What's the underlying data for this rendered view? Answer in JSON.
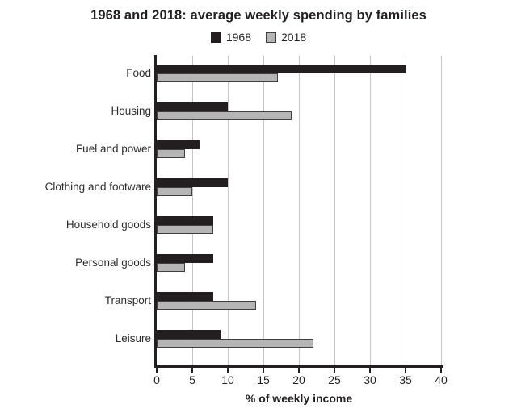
{
  "title": "1968 and 2018: average weekly spending by families",
  "legend": [
    {
      "label": "1968",
      "color": "#231f20",
      "border": "#231f20"
    },
    {
      "label": "2018",
      "color": "#b5b5b5",
      "border": "#3f3f3f"
    }
  ],
  "chart_data": {
    "type": "bar",
    "orientation": "horizontal",
    "title": "1968 and 2018: average weekly spending by families",
    "categories": [
      "Food",
      "Housing",
      "Fuel and power",
      "Clothing and footware",
      "Household goods",
      "Personal goods",
      "Transport",
      "Leisure"
    ],
    "series": [
      {
        "name": "1968",
        "color": "#231f20",
        "values": [
          35,
          10,
          6,
          10,
          8,
          8,
          8,
          9
        ]
      },
      {
        "name": "2018",
        "color": "#b5b5b5",
        "values": [
          17,
          19,
          4,
          5,
          8,
          4,
          14,
          22
        ]
      }
    ],
    "xlabel": "% of weekly income",
    "ylabel": "",
    "xlim": [
      0,
      40
    ],
    "xticks": [
      0,
      5,
      10,
      15,
      20,
      25,
      30,
      35,
      40
    ],
    "grid": true,
    "legend_position": "top"
  },
  "colors": {
    "background": "#ffffff",
    "axis": "#231f20",
    "gridline": "#c4c4c4",
    "text": "#231f20"
  }
}
